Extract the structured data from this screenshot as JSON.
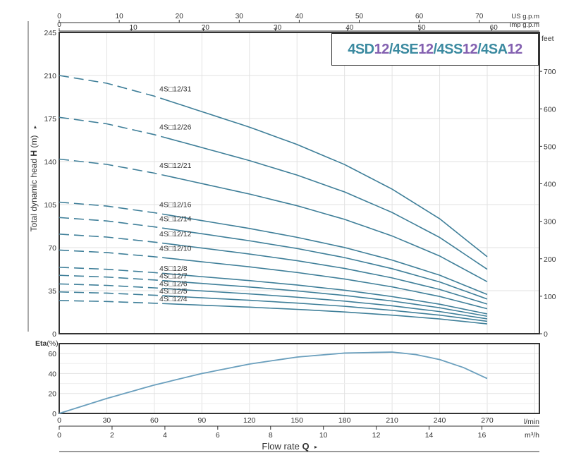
{
  "chart_data": [
    {
      "type": "line",
      "title": "4SD12/4SE12/4SS12/4SA12",
      "title_parts": [
        {
          "text": "4SD",
          "color": "#3b8aa0"
        },
        {
          "text": "12",
          "color": "#8360b0"
        },
        {
          "text": "/4SE",
          "color": "#3b8aa0"
        },
        {
          "text": "12",
          "color": "#8360b0"
        },
        {
          "text": "/4SS",
          "color": "#3b8aa0"
        },
        {
          "text": "12",
          "color": "#8360b0"
        },
        {
          "text": "/4SA",
          "color": "#3b8aa0"
        },
        {
          "text": "12",
          "color": "#8360b0"
        }
      ],
      "ylabel": "Total dynamic head H (m)",
      "ylabel_prefix": "Total dynamic head ",
      "ylabel_bold": "H",
      "ylabel_suffix": " (m)",
      "ylim": [
        0,
        245
      ],
      "yticks": [
        0,
        35,
        70,
        105,
        140,
        175,
        210,
        245
      ],
      "y2label": "feet",
      "y2ticks": [
        0,
        100,
        200,
        300,
        400,
        500,
        600,
        700
      ],
      "xlim": [
        0,
        303
      ],
      "top_axes": [
        {
          "unit": "US g.p.m",
          "ticks": [
            0,
            10,
            20,
            30,
            40,
            50,
            60,
            70
          ],
          "per_lmin": 0.26417
        },
        {
          "unit": "Imp g.p.m",
          "ticks": [
            0,
            10,
            20,
            30,
            40,
            50,
            60
          ],
          "per_lmin": 0.21997
        }
      ],
      "dashed_until_flow": 65,
      "x": [
        0,
        30,
        60,
        90,
        120,
        150,
        180,
        210,
        240,
        270
      ],
      "series": [
        {
          "name": "4S□12/31",
          "values": [
            210,
            203.7,
            193.2,
            180.6,
            168,
            153.9,
            137.6,
            117.6,
            93.5,
            62.6
          ]
        },
        {
          "name": "4S□12/26",
          "values": [
            176,
            170.7,
            161.9,
            151.4,
            140.8,
            129,
            115.3,
            98.6,
            78.3,
            52.4
          ]
        },
        {
          "name": "4S□12/21",
          "values": [
            142,
            137.7,
            130.6,
            122.1,
            113.6,
            104.1,
            93,
            79.5,
            63.2,
            42.3
          ]
        },
        {
          "name": "4S□12/16",
          "values": [
            107,
            103.8,
            98.4,
            92,
            85.6,
            78.4,
            70.1,
            59.9,
            47.6,
            31.9
          ]
        },
        {
          "name": "4S□12/14",
          "values": [
            94.5,
            91.7,
            86.9,
            81.3,
            75.6,
            69.3,
            61.9,
            52.9,
            42.1,
            28.2
          ]
        },
        {
          "name": "4S□12/12",
          "values": [
            81,
            78.6,
            74.5,
            69.7,
            64.8,
            59.4,
            53.1,
            45.4,
            36,
            24.1
          ]
        },
        {
          "name": "4S□12/10",
          "values": [
            68,
            66,
            62.6,
            58.5,
            54.4,
            49.8,
            44.5,
            38.1,
            30.3,
            20.3
          ]
        },
        {
          "name": "4S□12/8",
          "values": [
            54,
            52.4,
            49.7,
            46.4,
            43.2,
            39.6,
            35.4,
            30.2,
            24,
            16.1
          ]
        },
        {
          "name": "4S□12/7",
          "values": [
            47.5,
            46.1,
            43.7,
            40.9,
            38,
            34.8,
            31.1,
            26.6,
            21.1,
            14.2
          ]
        },
        {
          "name": "4S□12/6",
          "values": [
            40.5,
            39.3,
            37.3,
            34.8,
            32.4,
            29.7,
            26.5,
            22.7,
            18,
            12.1
          ]
        },
        {
          "name": "4S□12/5",
          "values": [
            34,
            33,
            31.3,
            29.2,
            27.2,
            24.9,
            22.3,
            19,
            15.1,
            10.1
          ]
        },
        {
          "name": "4S□12/4",
          "values": [
            27,
            26.2,
            24.8,
            23.2,
            21.6,
            19.8,
            17.7,
            15.1,
            12,
            8
          ]
        }
      ],
      "color": "#3f7f99",
      "grid": true
    },
    {
      "type": "line",
      "ylabel": "Eta(%)",
      "ylabel_bold": "Eta",
      "ylabel_suffix": "(%)",
      "ylim": [
        0,
        70
      ],
      "yticks": [
        0,
        20,
        40,
        60
      ],
      "x": [
        0,
        30,
        60,
        90,
        120,
        150,
        180,
        210,
        225,
        240,
        255,
        270
      ],
      "values": [
        0,
        15,
        28.5,
        40,
        49.5,
        56.5,
        60.5,
        61.5,
        59,
        54,
        46,
        35
      ],
      "xticks_lmin": [
        0,
        30,
        60,
        90,
        120,
        150,
        180,
        210,
        240,
        270
      ],
      "xunit_lmin": "l/min",
      "xticks_m3h": [
        0,
        2,
        4,
        6,
        8,
        10,
        12,
        14,
        16
      ],
      "xunit_m3h": "m³/h",
      "xlabel_prefix": "Flow  rate  ",
      "xlabel_bold": "Q",
      "color": "#6a9fbd"
    }
  ]
}
